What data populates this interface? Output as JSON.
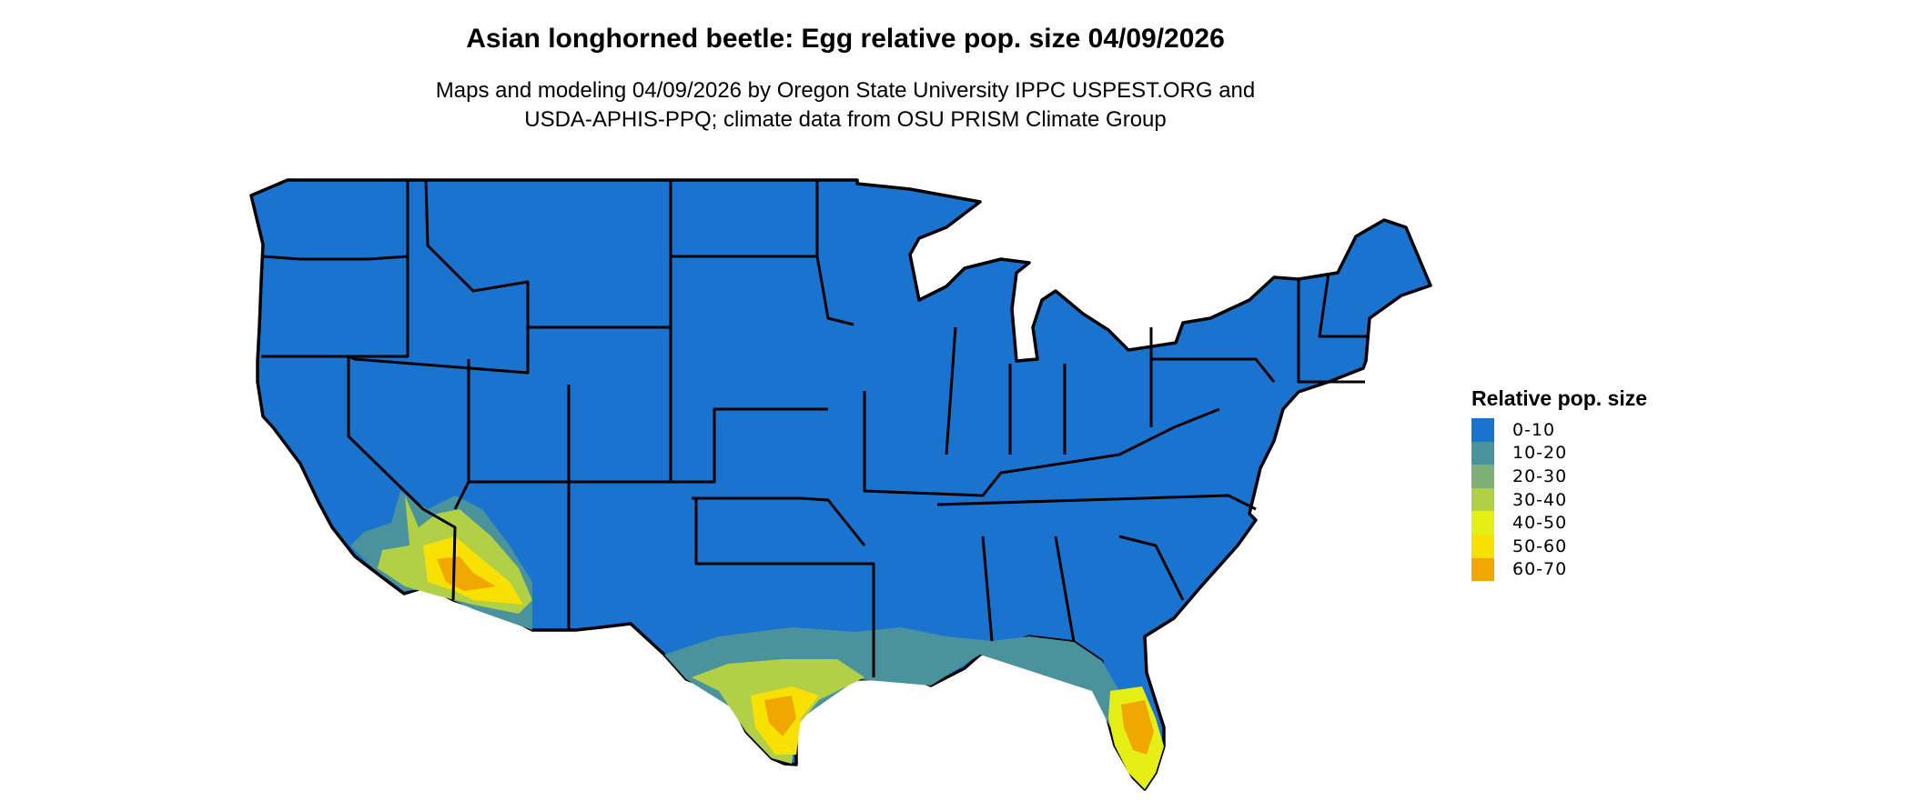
{
  "title": "Asian longhorned beetle: Egg relative pop. size 04/09/2026",
  "subtitle_line1": "Maps and modeling 04/09/2026 by Oregon State University IPPC USPEST.ORG and",
  "subtitle_line2": "USDA-APHIS-PPQ; climate data from OSU PRISM Climate Group",
  "legend": {
    "title": "Relative pop. size",
    "items": [
      {
        "label": "0-10",
        "color": "#1a74cf"
      },
      {
        "label": "10-20",
        "color": "#4a939c"
      },
      {
        "label": "20-30",
        "color": "#7cb074"
      },
      {
        "label": "30-40",
        "color": "#b1d046"
      },
      {
        "label": "40-50",
        "color": "#e6ef15"
      },
      {
        "label": "50-60",
        "color": "#f8e000"
      },
      {
        "label": "60-70",
        "color": "#f0a800"
      }
    ]
  },
  "map": {
    "region": "Contiguous United States",
    "background_class": "0-10",
    "border_color": "#000000"
  }
}
